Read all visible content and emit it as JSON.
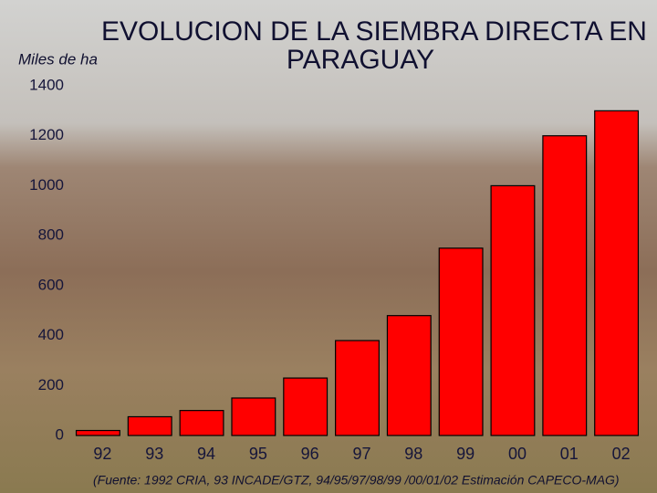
{
  "chart_data": {
    "type": "bar",
    "title_lines": [
      "EVOLUCION DE LA SIEMBRA DIRECTA EN",
      "PARAGUAY"
    ],
    "y_label": "Miles de ha",
    "source": "(Fuente: 1992 CRIA, 93 INCADE/GTZ, 94/95/97/98/99 /00/01/02 Estimación CAPECO-MAG)",
    "categories": [
      "92",
      "93",
      "94",
      "95",
      "96",
      "97",
      "98",
      "99",
      "00",
      "01",
      "02"
    ],
    "values": [
      20,
      75,
      100,
      150,
      230,
      380,
      480,
      750,
      1000,
      1200,
      1300
    ],
    "color": "#ff0000",
    "ylim": [
      0,
      1400
    ],
    "yticks": [
      0,
      200,
      400,
      600,
      800,
      1000,
      1200,
      1400
    ]
  }
}
